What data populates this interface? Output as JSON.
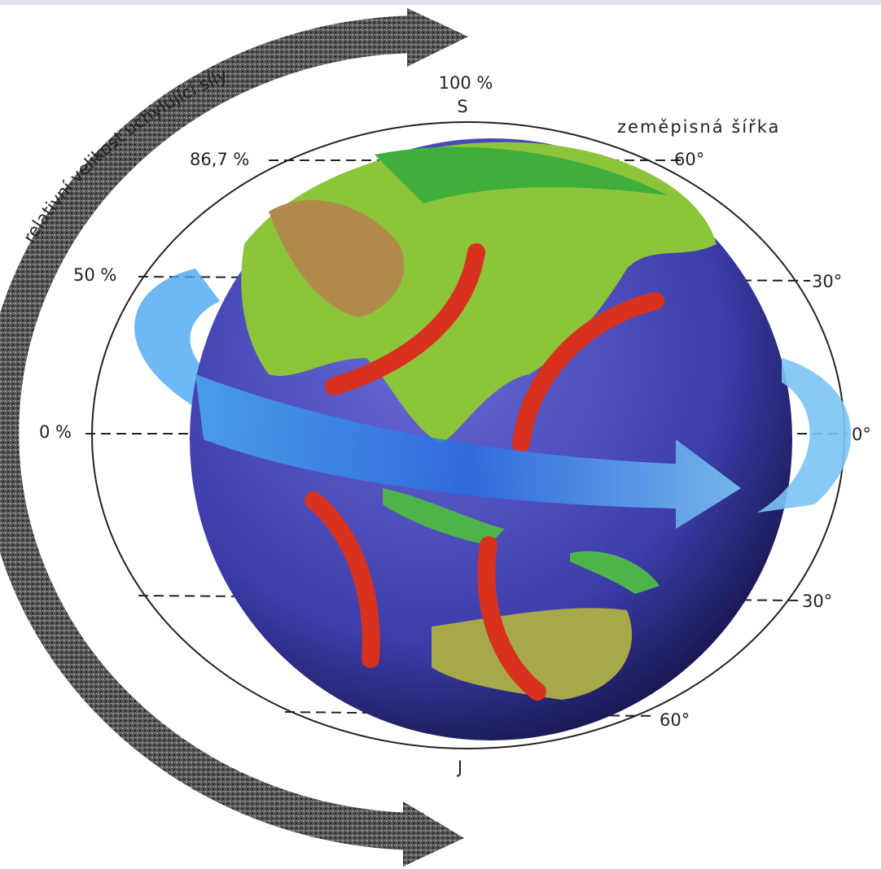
{
  "diagram": {
    "arrow_label": "relativní velikost uchylující síly",
    "axis_title": "zeměpisná šířka",
    "north": "S",
    "south": "J",
    "left_labels": [
      "100 %",
      "86,7 %",
      "50 %",
      "0 %"
    ],
    "right_labels": [
      "60°",
      "30°",
      "0°",
      "30°",
      "60°"
    ]
  }
}
